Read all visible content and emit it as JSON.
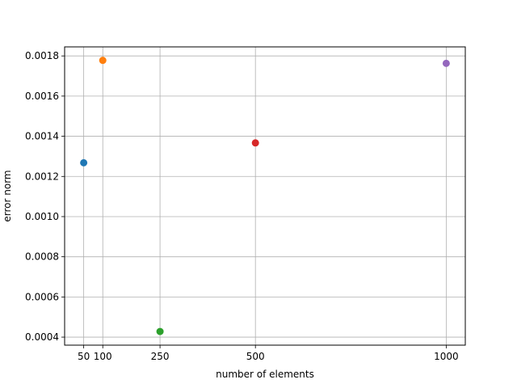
{
  "chart_data": {
    "type": "scatter",
    "title": "",
    "xlabel": "number of elements",
    "ylabel": "error norm",
    "xlim": [
      0,
      1050
    ],
    "ylim": [
      0.00036,
      0.001845
    ],
    "xticks": [
      50,
      100,
      250,
      500,
      1000
    ],
    "xtick_labels": [
      "50",
      "100",
      "250",
      "500",
      "1000"
    ],
    "yticks": [
      0.0004,
      0.0006,
      0.0008,
      0.001,
      0.0012,
      0.0014,
      0.0016,
      0.0018
    ],
    "ytick_labels": [
      "0.0004",
      "0.0006",
      "0.0008",
      "0.0010",
      "0.0012",
      "0.0014",
      "0.0016",
      "0.0018"
    ],
    "grid": true,
    "points": [
      {
        "x": 50,
        "y": 0.001268,
        "color": "#1f77b4"
      },
      {
        "x": 100,
        "y": 0.001778,
        "color": "#ff7f0e"
      },
      {
        "x": 250,
        "y": 0.000428,
        "color": "#2ca02c"
      },
      {
        "x": 500,
        "y": 0.001367,
        "color": "#d62728"
      },
      {
        "x": 1000,
        "y": 0.001763,
        "color": "#9467bd"
      }
    ]
  }
}
